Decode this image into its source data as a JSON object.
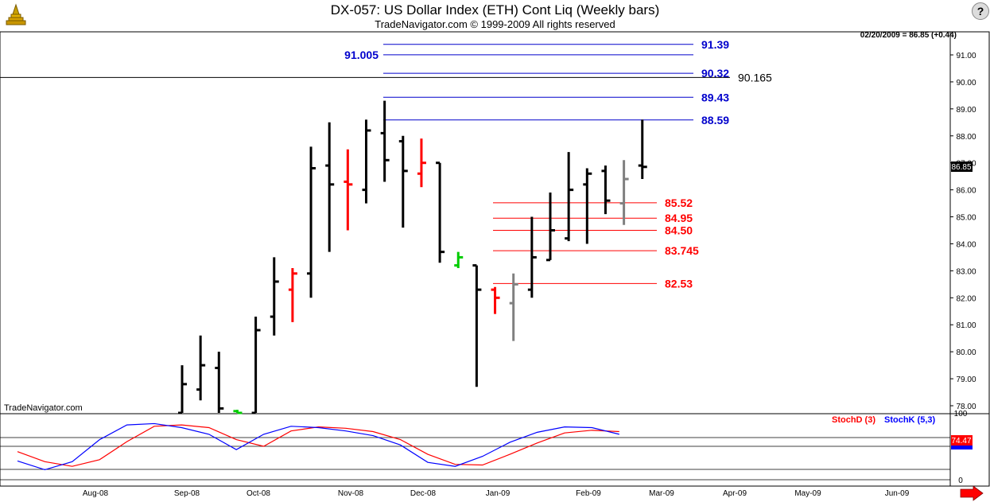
{
  "header": {
    "title": "DX-057:  US Dollar Index (ETH) Cont Liq  (Weekly bars)",
    "subtitle": "TradeNavigator.com © 1999-2009 All rights reserved",
    "help_label": "?"
  },
  "watermark": "TradeNavigator.com",
  "date_readout": "02/20/2009 = 86.85 (+0.44)",
  "last_price_label": "86.85",
  "colors": {
    "up": "#000000",
    "down": "#ff0000",
    "inside": "#808080",
    "green": "#00cc00",
    "blue_level": "#0000cc",
    "red_level": "#ff0000",
    "stochD": "#ff0000",
    "stochK": "#0000ff"
  },
  "chart_data": [
    {
      "type": "ohlc",
      "title": "DX-057:  US Dollar Index (ETH) Cont Liq  (Weekly bars)",
      "ylim": [
        77.8,
        92.3
      ],
      "y_ticks": [
        "78.00",
        "79.00",
        "80.00",
        "81.00",
        "82.00",
        "83.00",
        "84.00",
        "85.00",
        "86.00",
        "87.00",
        "88.00",
        "89.00",
        "90.00",
        "91.00"
      ],
      "x_labels": [
        "Aug-08",
        "Sep-08",
        "Oct-08",
        "Nov-08",
        "Dec-08",
        "Jan-09",
        "Feb-09",
        "Mar-09",
        "Apr-09",
        "May-09",
        "Jun-09"
      ],
      "bars": [
        {
          "o": 77.7,
          "h": 79.5,
          "l": 77.7,
          "c": 78.8,
          "color": "up"
        },
        {
          "o": 78.6,
          "h": 80.6,
          "l": 78.2,
          "c": 79.5,
          "color": "up"
        },
        {
          "o": 79.4,
          "h": 80.0,
          "l": 77.7,
          "c": 77.9,
          "color": "up"
        },
        {
          "o": 77.8,
          "h": 77.85,
          "l": 77.7,
          "c": 77.7,
          "color": "green"
        },
        {
          "o": 77.7,
          "h": 81.3,
          "l": 77.7,
          "c": 80.8,
          "color": "up"
        },
        {
          "o": 81.3,
          "h": 83.5,
          "l": 80.6,
          "c": 82.6,
          "color": "up"
        },
        {
          "o": 82.3,
          "h": 83.1,
          "l": 81.1,
          "c": 82.9,
          "color": "down"
        },
        {
          "o": 82.9,
          "h": 87.6,
          "l": 82.0,
          "c": 86.8,
          "color": "up"
        },
        {
          "o": 86.9,
          "h": 88.5,
          "l": 83.7,
          "c": 86.2,
          "color": "up"
        },
        {
          "o": 86.3,
          "h": 87.5,
          "l": 84.5,
          "c": 86.2,
          "color": "down"
        },
        {
          "o": 86.0,
          "h": 88.6,
          "l": 85.5,
          "c": 88.2,
          "color": "up"
        },
        {
          "o": 88.1,
          "h": 89.3,
          "l": 86.3,
          "c": 87.1,
          "color": "up"
        },
        {
          "o": 87.8,
          "h": 88.0,
          "l": 84.6,
          "c": 86.7,
          "color": "up"
        },
        {
          "o": 86.6,
          "h": 87.9,
          "l": 86.1,
          "c": 87.0,
          "color": "down"
        },
        {
          "o": 87.0,
          "h": 87.0,
          "l": 83.3,
          "c": 83.7,
          "color": "up"
        },
        {
          "o": 83.2,
          "h": 83.7,
          "l": 83.1,
          "c": 83.5,
          "color": "green"
        },
        {
          "o": 83.2,
          "h": 83.2,
          "l": 78.7,
          "c": 82.3,
          "color": "up"
        },
        {
          "o": 82.3,
          "h": 82.4,
          "l": 81.4,
          "c": 82.0,
          "color": "down"
        },
        {
          "o": 81.8,
          "h": 82.9,
          "l": 80.4,
          "c": 82.5,
          "color": "inside"
        },
        {
          "o": 82.3,
          "h": 85.0,
          "l": 82.0,
          "c": 83.5,
          "color": "up"
        },
        {
          "o": 83.4,
          "h": 85.9,
          "l": 83.4,
          "c": 84.5,
          "color": "up"
        },
        {
          "o": 84.2,
          "h": 87.4,
          "l": 84.1,
          "c": 86.0,
          "color": "up"
        },
        {
          "o": 86.2,
          "h": 86.8,
          "l": 84.0,
          "c": 86.6,
          "color": "up"
        },
        {
          "o": 86.7,
          "h": 86.9,
          "l": 85.1,
          "c": 85.6,
          "color": "up"
        },
        {
          "o": 85.5,
          "h": 87.1,
          "l": 84.7,
          "c": 86.4,
          "color": "inside"
        },
        {
          "o": 86.9,
          "h": 88.6,
          "l": 86.4,
          "c": 86.85,
          "color": "up"
        }
      ],
      "blue_levels": [
        {
          "value": 91.39,
          "label": "91.39"
        },
        {
          "value": 91.005,
          "label": "91.005"
        },
        {
          "value": 90.32,
          "label": "90.32"
        },
        {
          "value": 89.43,
          "label": "89.43"
        },
        {
          "value": 88.59,
          "label": "88.59"
        }
      ],
      "black_level": {
        "value": 90.165,
        "label": "90.165"
      },
      "red_levels": [
        {
          "value": 85.52,
          "label": "85.52"
        },
        {
          "value": 84.95,
          "label": "84.95"
        },
        {
          "value": 84.5,
          "label": "84.50"
        },
        {
          "value": 83.745,
          "label": "83.745"
        },
        {
          "value": 82.53,
          "label": "82.53"
        }
      ]
    },
    {
      "type": "line",
      "title": "",
      "legend": [
        "StochD (3)",
        "StochK (5,3)"
      ],
      "ylim": [
        0,
        110
      ],
      "y_ticks": [
        "0",
        "50",
        "100"
      ],
      "current_value_label": "74.47",
      "series": [
        {
          "name": "StochD (3)",
          "values": [
            42,
            27,
            20,
            30,
            57,
            80,
            82,
            78,
            60,
            50,
            73,
            79,
            77,
            72,
            60,
            38,
            23,
            22,
            38,
            55,
            70,
            74,
            72
          ]
        },
        {
          "name": "StochK (5,3)",
          "values": [
            28,
            15,
            27,
            60,
            82,
            84,
            78,
            68,
            45,
            68,
            80,
            78,
            73,
            66,
            52,
            26,
            20,
            35,
            56,
            71,
            79,
            78,
            68
          ]
        }
      ]
    }
  ]
}
